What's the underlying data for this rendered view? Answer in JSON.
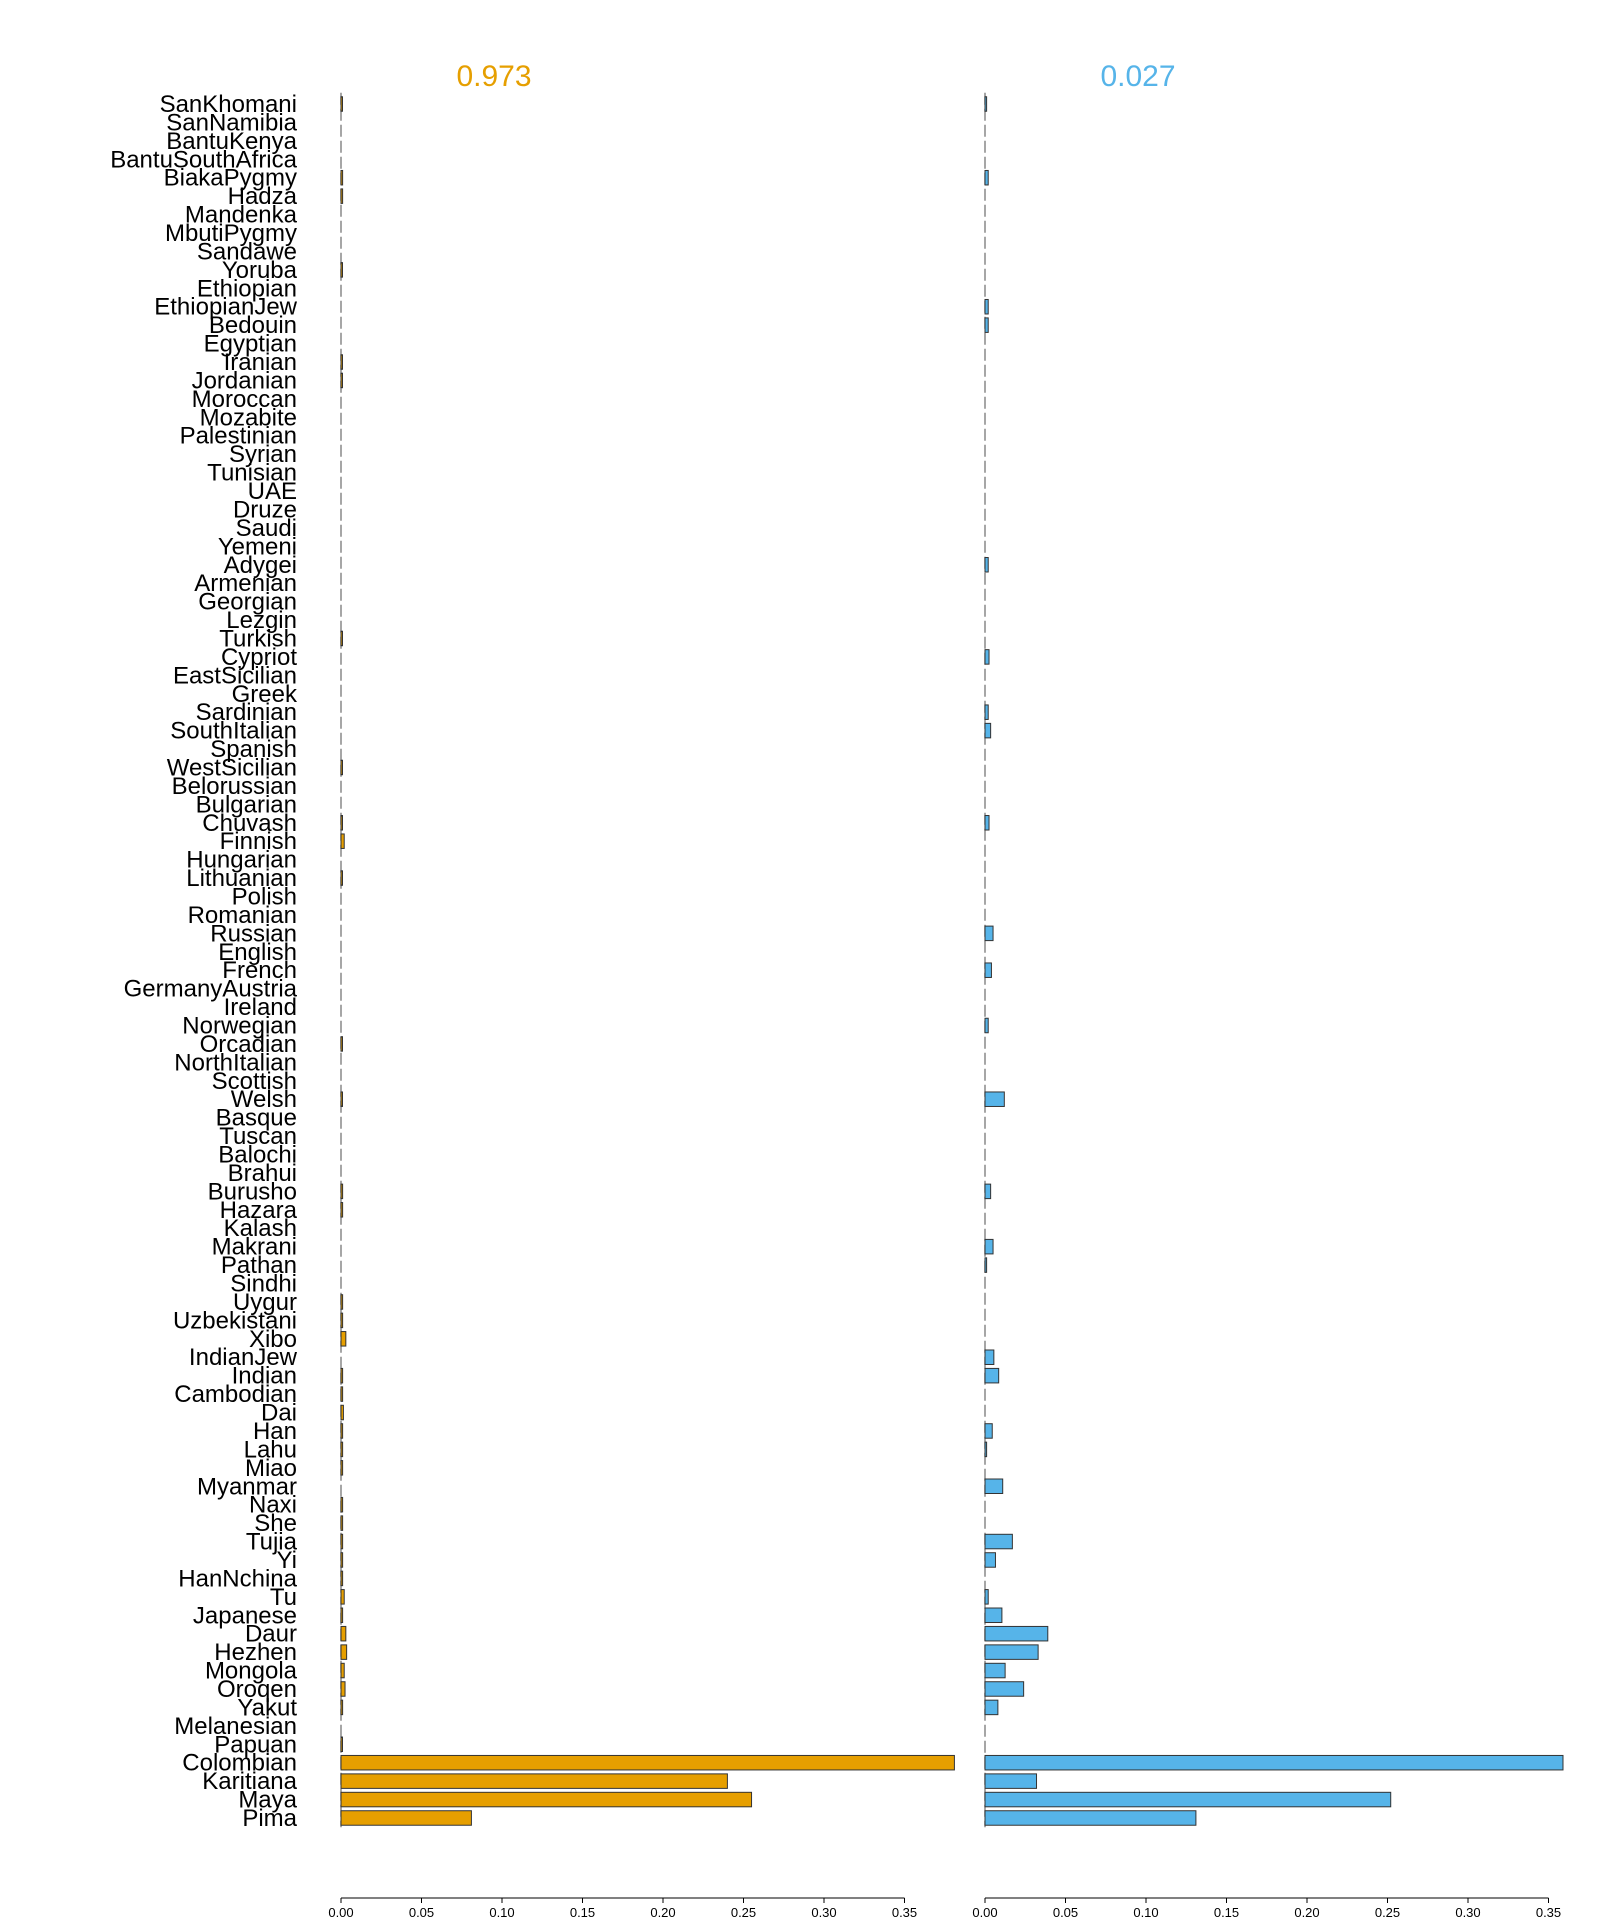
{
  "chart_data": {
    "type": "bar",
    "orientation": "horizontal",
    "categories": [
      "SanKhomani",
      "SanNamibia",
      "BantuKenya",
      "BantuSouthAfrica",
      "BiakaPygmy",
      "Hadza",
      "Mandenka",
      "MbutiPygmy",
      "Sandawe",
      "Yoruba",
      "Ethiopian",
      "EthiopianJew",
      "Bedouin",
      "Egyptian",
      "Iranian",
      "Jordanian",
      "Moroccan",
      "Mozabite",
      "Palestinian",
      "Syrian",
      "Tunisian",
      "UAE",
      "Druze",
      "Saudi",
      "Yemeni",
      "Adygei",
      "Armenian",
      "Georgian",
      "Lezgin",
      "Turkish",
      "Cypriot",
      "EastSicilian",
      "Greek",
      "Sardinian",
      "SouthItalian",
      "Spanish",
      "WestSicilian",
      "Belorussian",
      "Bulgarian",
      "Chuvash",
      "Finnish",
      "Hungarian",
      "Lithuanian",
      "Polish",
      "Romanian",
      "Russian",
      "English",
      "French",
      "GermanyAustria",
      "Ireland",
      "Norwegian",
      "Orcadian",
      "NorthItalian",
      "Scottish",
      "Welsh",
      "Basque",
      "Tuscan",
      "Balochi",
      "Brahui",
      "Burusho",
      "Hazara",
      "Kalash",
      "Makrani",
      "Pathan",
      "Sindhi",
      "Uygur",
      "Uzbekistani",
      "Xibo",
      "IndianJew",
      "Indian",
      "Cambodian",
      "Dai",
      "Han",
      "Lahu",
      "Miao",
      "Myanmar",
      "Naxi",
      "She",
      "Tujia",
      "Yi",
      "HanNchina",
      "Tu",
      "Japanese",
      "Daur",
      "Hezhen",
      "Mongola",
      "Oroqen",
      "Yakut",
      "Melanesian",
      "Papuan",
      "Colombian",
      "Karitiana",
      "Maya",
      "Pima"
    ],
    "xlim": [
      0,
      0.37
    ],
    "xticks": [
      "0.00",
      "0.05",
      "0.10",
      "0.15",
      "0.20",
      "0.25",
      "0.30",
      "0.35"
    ],
    "grid": false,
    "panels": [
      {
        "title": "0.973",
        "color": "#E69F00",
        "values": [
          0.0005,
          0,
          0,
          0,
          0.001,
          0.001,
          0,
          0,
          0,
          0.0005,
          0,
          0,
          0,
          0,
          0.0005,
          0.0005,
          0,
          0,
          0,
          0,
          0,
          0,
          0,
          0,
          0,
          0,
          0,
          0,
          0,
          0.0005,
          0,
          0,
          0,
          0,
          0,
          0,
          0.0005,
          0,
          0,
          0.0005,
          0.002,
          0,
          0.0005,
          0,
          0,
          0,
          0,
          0,
          0,
          0,
          0,
          0.0005,
          0,
          0,
          0.0005,
          0,
          0,
          0,
          0,
          0.001,
          0.001,
          0,
          0,
          0,
          0,
          0.001,
          0.001,
          0.003,
          0,
          0.001,
          0.001,
          0.0015,
          0.001,
          0.001,
          0.001,
          0,
          0.001,
          0.001,
          0.001,
          0.001,
          0.001,
          0.002,
          0.001,
          0.003,
          0.0035,
          0.002,
          0.0025,
          0.001,
          0,
          0.0005,
          0.381,
          0.24,
          0.255,
          0.081
        ]
      },
      {
        "title": "0.027",
        "color": "#56B4E9",
        "values": [
          0.001,
          0,
          0,
          0,
          0.002,
          0,
          0,
          0,
          0,
          0,
          0,
          0.002,
          0.002,
          0,
          0,
          0,
          0,
          0,
          0,
          0,
          0,
          0,
          0,
          0,
          0,
          0.002,
          0,
          0,
          0,
          0,
          0.0025,
          0,
          0,
          0.002,
          0.0035,
          0,
          0,
          0,
          0,
          0.0025,
          0,
          0,
          0,
          0,
          0,
          0.005,
          0,
          0.004,
          0,
          0,
          0.002,
          0,
          0,
          0,
          0.012,
          0,
          0,
          0,
          0,
          0.0035,
          0,
          0,
          0.005,
          0.001,
          0,
          0,
          0,
          0,
          0.0055,
          0.0085,
          0,
          0,
          0.0045,
          0.001,
          0,
          0.011,
          0,
          0,
          0.017,
          0.0065,
          0,
          0.002,
          0.0105,
          0.039,
          0.033,
          0.0125,
          0.024,
          0.008,
          0,
          0,
          0.359,
          0.032,
          0.252,
          0.131
        ]
      }
    ]
  }
}
